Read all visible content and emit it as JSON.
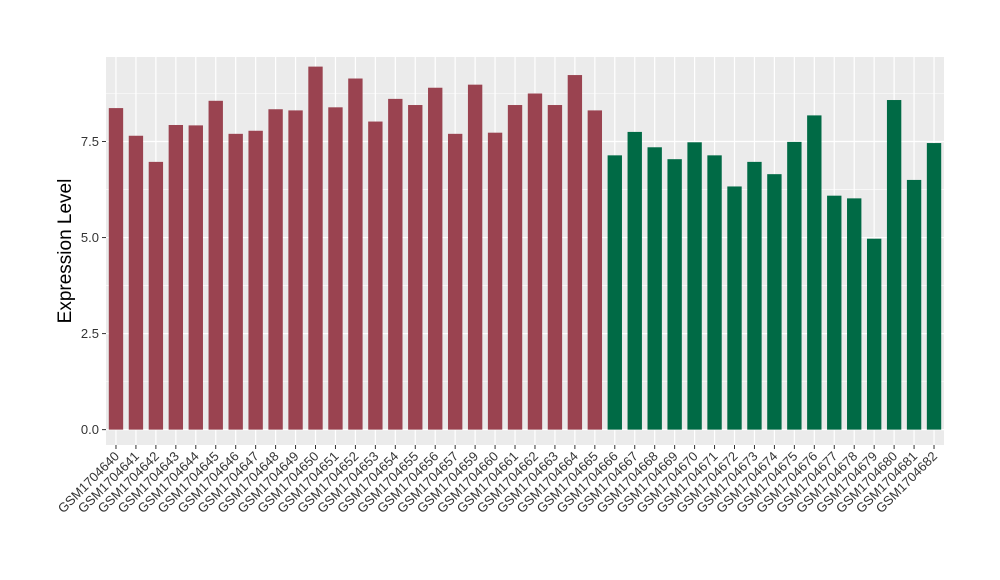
{
  "chart_data": {
    "type": "bar",
    "title": "",
    "xlabel": "",
    "ylabel": "Expression Level",
    "ylim": [
      -0.4,
      9.7
    ],
    "yticks": [
      0.0,
      2.5,
      5.0,
      7.5
    ],
    "ytick_labels": [
      "0.0",
      "2.5",
      "5.0",
      "7.5"
    ],
    "grid": true,
    "legend": "none",
    "panel_color": "#ebebeb",
    "grid_color": "#ffffff",
    "categories": [
      "GSM1704640",
      "GSM1704641",
      "GSM1704642",
      "GSM1704643",
      "GSM1704644",
      "GSM1704645",
      "GSM1704646",
      "GSM1704647",
      "GSM1704648",
      "GSM1704649",
      "GSM1704650",
      "GSM1704651",
      "GSM1704652",
      "GSM1704653",
      "GSM1704654",
      "GSM1704655",
      "GSM1704656",
      "GSM1704657",
      "GSM1704659",
      "GSM1704660",
      "GSM1704661",
      "GSM1704662",
      "GSM1704663",
      "GSM1704664",
      "GSM1704665",
      "GSM1704666",
      "GSM1704667",
      "GSM1704668",
      "GSM1704669",
      "GSM1704670",
      "GSM1704671",
      "GSM1704672",
      "GSM1704673",
      "GSM1704674",
      "GSM1704675",
      "GSM1704676",
      "GSM1704677",
      "GSM1704678",
      "GSM1704679",
      "GSM1704680",
      "GSM1704681",
      "GSM1704682"
    ],
    "values": [
      8.37,
      7.65,
      6.97,
      7.93,
      7.92,
      8.56,
      7.7,
      7.78,
      8.34,
      8.31,
      9.45,
      8.39,
      9.14,
      8.02,
      8.61,
      8.45,
      8.9,
      7.7,
      8.98,
      7.73,
      8.45,
      8.75,
      8.45,
      9.23,
      8.31,
      7.14,
      7.75,
      7.35,
      7.04,
      7.48,
      7.14,
      6.33,
      6.97,
      6.65,
      7.49,
      8.18,
      6.09,
      6.02,
      4.97,
      8.58,
      6.5,
      7.46
    ],
    "bar_colors": [
      "#9a4350",
      "#9a4350",
      "#9a4350",
      "#9a4350",
      "#9a4350",
      "#9a4350",
      "#9a4350",
      "#9a4350",
      "#9a4350",
      "#9a4350",
      "#9a4350",
      "#9a4350",
      "#9a4350",
      "#9a4350",
      "#9a4350",
      "#9a4350",
      "#9a4350",
      "#9a4350",
      "#9a4350",
      "#9a4350",
      "#9a4350",
      "#9a4350",
      "#9a4350",
      "#9a4350",
      "#9a4350",
      "#006a45",
      "#006a45",
      "#006a45",
      "#006a45",
      "#006a45",
      "#006a45",
      "#006a45",
      "#006a45",
      "#006a45",
      "#006a45",
      "#006a45",
      "#006a45",
      "#006a45",
      "#006a45",
      "#006a45",
      "#006a45",
      "#006a45"
    ]
  }
}
